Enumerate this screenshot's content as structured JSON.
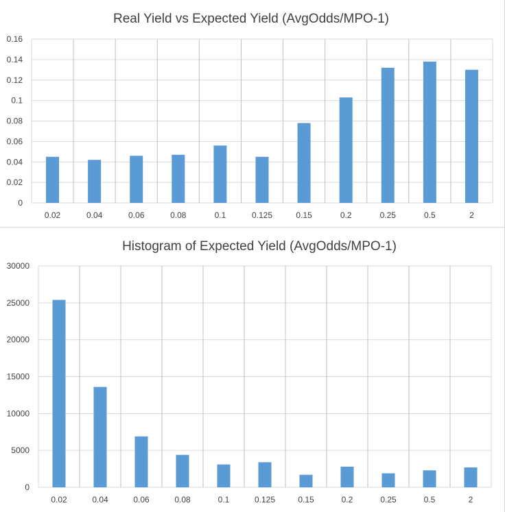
{
  "chart_data": [
    {
      "type": "bar",
      "title": "Real Yield vs Expected Yield (AvgOdds/MPO-1)",
      "categories": [
        "0.02",
        "0.04",
        "0.06",
        "0.08",
        "0.1",
        "0.125",
        "0.15",
        "0.2",
        "0.25",
        "0.5",
        "2"
      ],
      "values": [
        0.045,
        0.042,
        0.046,
        0.047,
        0.056,
        0.045,
        0.078,
        0.103,
        0.132,
        0.138,
        0.13
      ],
      "ylim": [
        0,
        0.16
      ],
      "yticks": [
        "0",
        "0.02",
        "0.04",
        "0.06",
        "0.08",
        "0.1",
        "0.12",
        "0.14",
        "0.16"
      ],
      "grid": "horizontal and vertical",
      "legend": "none",
      "bar_color": "#5b9bd5"
    },
    {
      "type": "bar",
      "title": "Histogram of Expected Yield (AvgOdds/MPO-1)",
      "categories": [
        "0.02",
        "0.04",
        "0.06",
        "0.08",
        "0.1",
        "0.125",
        "0.15",
        "0.2",
        "0.25",
        "0.5",
        "2"
      ],
      "values": [
        25400,
        13600,
        6900,
        4400,
        3100,
        3400,
        1700,
        2800,
        1900,
        2300,
        2700
      ],
      "ylim": [
        0,
        30000
      ],
      "yticks": [
        "0",
        "5000",
        "10000",
        "15000",
        "20000",
        "25000",
        "30000"
      ],
      "grid": "horizontal and vertical",
      "legend": "none",
      "bar_color": "#5b9bd5"
    }
  ]
}
